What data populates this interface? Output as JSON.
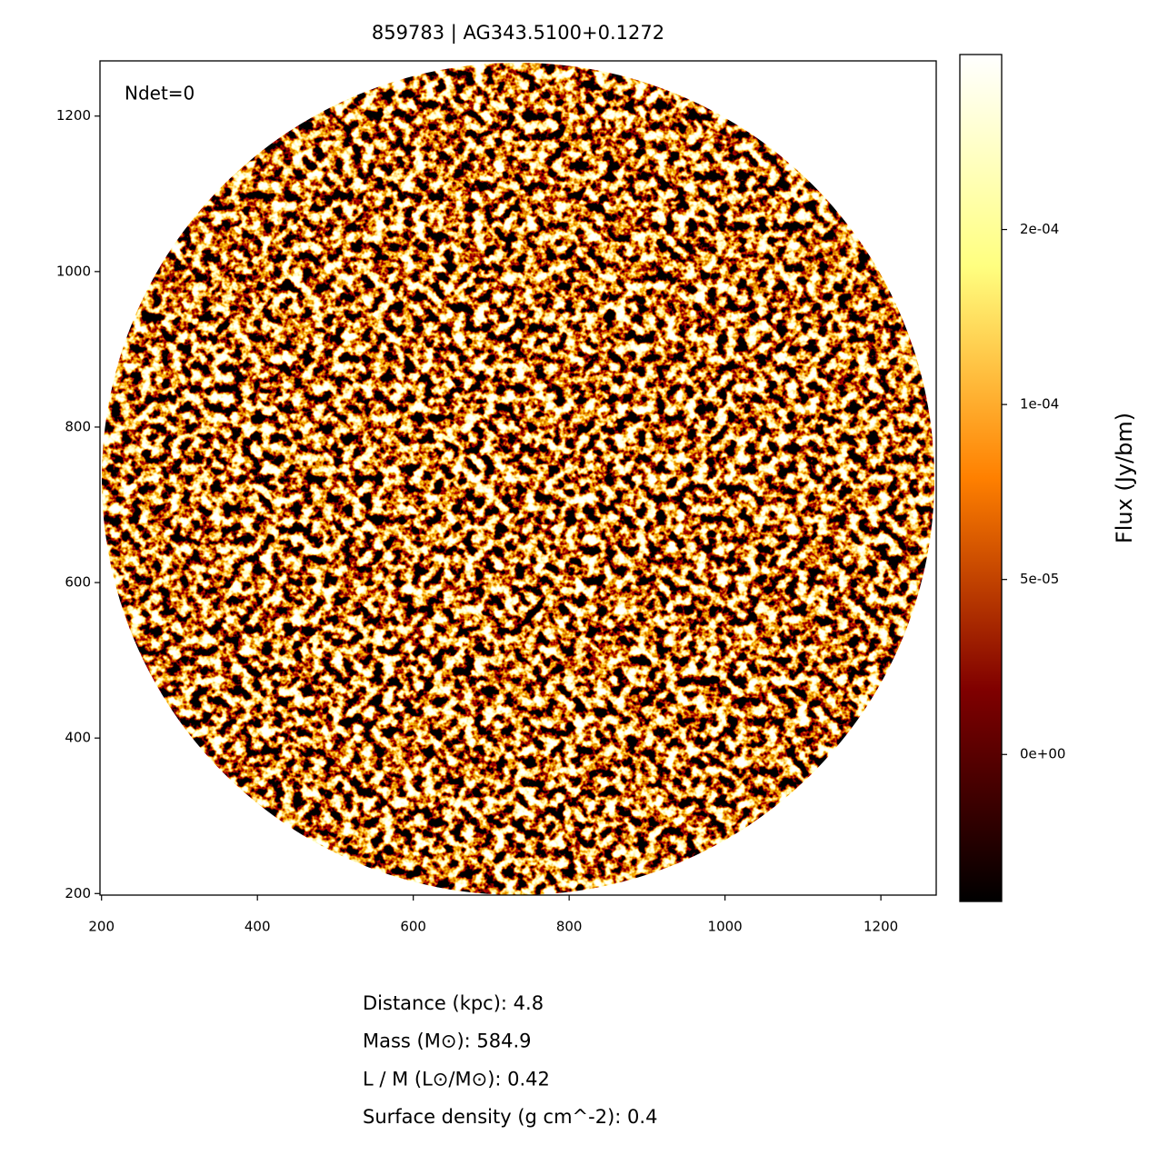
{
  "chart_data": {
    "type": "image",
    "title": "859783 | AG343.5100+0.1272",
    "annotation": "Ndet=0",
    "xlim": [
      198,
      1271
    ],
    "ylim": [
      198,
      1271
    ],
    "xticks": [
      200,
      400,
      600,
      800,
      1000,
      1200
    ],
    "yticks": [
      200,
      400,
      600,
      800,
      1000,
      1200
    ],
    "colormap": "afmhot",
    "colorbar": {
      "label": "Flux (Jy/bm)",
      "clim": [
        -4.2e-05,
        0.0002
      ],
      "ticks": [
        {
          "value": 0,
          "label": "0e+00"
        },
        {
          "value": 5e-05,
          "label": "5e-05"
        },
        {
          "value": 0.0001,
          "label": "1e-04"
        },
        {
          "value": 0.00015,
          "label": "2e-04"
        }
      ]
    },
    "info": [
      "Distance (kpc): 4.8",
      "Mass (M⊙): 584.9",
      "L / M (L⊙/M⊙): 0.42",
      "Surface density (g cm^-2): 0.4"
    ]
  }
}
